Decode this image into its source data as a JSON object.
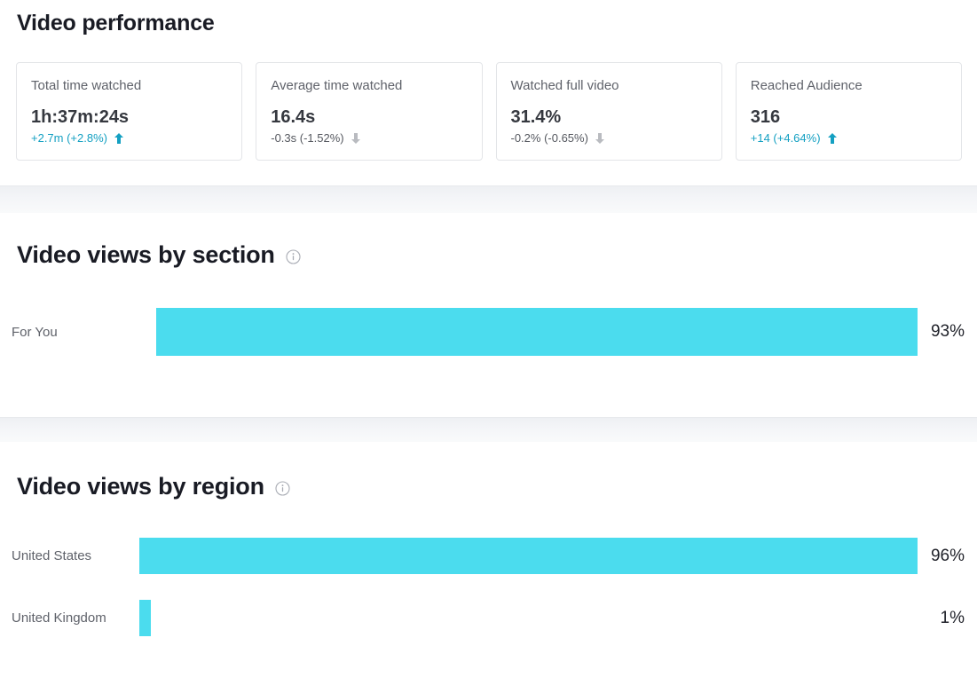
{
  "page": {
    "title": "Video performance"
  },
  "colors": {
    "bar": "#4BDCEE",
    "positive": "#14A0C2",
    "negative_text": "#55585F",
    "negative_arrow": "#B9BBC0"
  },
  "stats_cards": [
    {
      "label": "Total time watched",
      "value": "1h:37m:24s",
      "delta": "+2.7m (+2.8%)",
      "trend": "up"
    },
    {
      "label": "Average time watched",
      "value": "16.4s",
      "delta": "-0.3s (-1.52%)",
      "trend": "down"
    },
    {
      "label": "Watched full video",
      "value": "31.4%",
      "delta": "-0.2% (-0.65%)",
      "trend": "down"
    },
    {
      "label": "Reached Audience",
      "value": "316",
      "delta": "+14 (+4.64%)",
      "trend": "up"
    }
  ],
  "chart_data": [
    {
      "type": "bar",
      "orientation": "horizontal",
      "title": "Video views by section",
      "info_icon": "info-circle",
      "categories": [
        "For You"
      ],
      "values": [
        93
      ],
      "value_labels": [
        "93%"
      ],
      "value_suffix": "%",
      "scale": "relative-to-max",
      "bar_color": "#4BDCEE",
      "grid": false,
      "legend": false
    },
    {
      "type": "bar",
      "orientation": "horizontal",
      "title": "Video views by region",
      "info_icon": "info-circle",
      "categories": [
        "United States",
        "United Kingdom"
      ],
      "values": [
        96,
        1
      ],
      "value_labels": [
        "96%",
        "1%"
      ],
      "value_suffix": "%",
      "scale": "relative-to-max",
      "bar_color": "#4BDCEE",
      "grid": false,
      "legend": false
    }
  ]
}
